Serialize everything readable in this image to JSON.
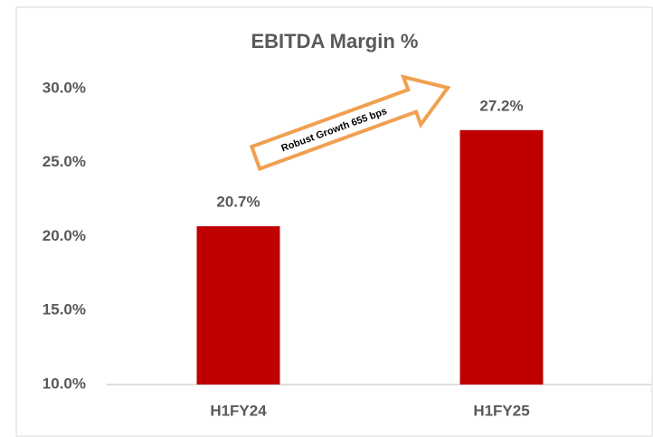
{
  "chart_data": {
    "type": "bar",
    "title": "EBITDA Margin %",
    "categories": [
      "H1FY24",
      "H1FY25"
    ],
    "values": [
      20.7,
      27.2
    ],
    "value_labels": [
      "20.7%",
      "27.2%"
    ],
    "color": "#c00000",
    "ylim": [
      10,
      30
    ],
    "yticks": [
      {
        "value": 10,
        "label": "10.0%"
      },
      {
        "value": 15,
        "label": "15.0%"
      },
      {
        "value": 20,
        "label": "20.0%"
      },
      {
        "value": 25,
        "label": "25.0%"
      },
      {
        "value": 30,
        "label": "30.0%"
      }
    ],
    "grid": false,
    "annotation": "Robust Growth 655 bps"
  }
}
